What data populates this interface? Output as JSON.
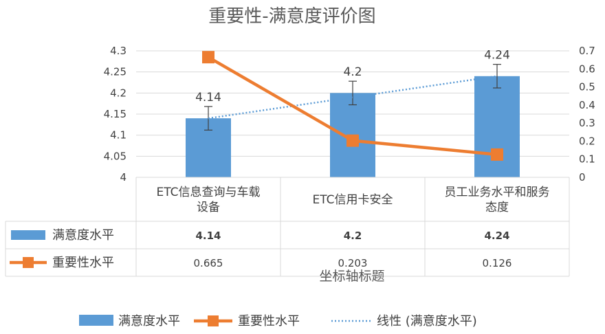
{
  "chart_data": {
    "type": "bar",
    "title": "重要性-满意度评价图",
    "xlabel": "坐标轴标题",
    "categories": [
      "ETC信息查询与车载设备",
      "ETC信用卡安全",
      "员工业务水平和服务态度"
    ],
    "category_lines": [
      [
        "ETC信息查询与车载",
        "设备"
      ],
      [
        "ETC信用卡安全"
      ],
      [
        "员工业务水平和服务",
        "态度"
      ]
    ],
    "series": [
      {
        "name": "满意度水平",
        "type": "bar",
        "axis": "left",
        "values": [
          4.14,
          4.2,
          4.24
        ],
        "labels": [
          "4.14",
          "4.2",
          "4.24"
        ],
        "error": [
          0.028,
          0.028,
          0.028
        ],
        "color": "#5B9BD5"
      },
      {
        "name": "重要性水平",
        "type": "line",
        "axis": "right",
        "values": [
          0.665,
          0.203,
          0.126
        ],
        "labels": [
          "0.665",
          "0.203",
          "0.126"
        ],
        "color": "#ED7D31"
      }
    ],
    "trendline": {
      "name": "线性 (满意度水平)",
      "of": "满意度水平",
      "values": [
        4.14,
        4.19,
        4.24
      ],
      "color": "#5B9BD5",
      "style": "dotted"
    },
    "y_left": {
      "min": 4,
      "max": 4.3,
      "ticks": [
        "4",
        "4.05",
        "4.1",
        "4.15",
        "4.2",
        "4.25",
        "4.3"
      ]
    },
    "y_right": {
      "min": 0,
      "max": 0.7,
      "ticks": [
        "0",
        "0.1",
        "0.2",
        "0.3",
        "0.4",
        "0.5",
        "0.6",
        "0.7"
      ]
    },
    "grid": true,
    "data_table": true,
    "legend_position": "bottom"
  }
}
